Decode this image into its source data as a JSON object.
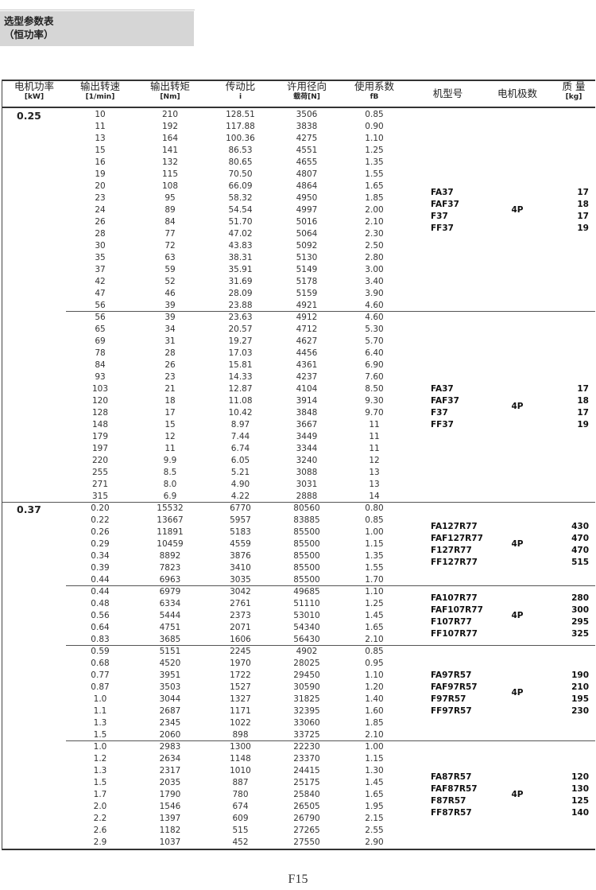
{
  "title": {
    "line1": "选型参数表",
    "line2": "（恒功率）"
  },
  "headers": [
    {
      "label": "电机功率",
      "unit": "[kW]"
    },
    {
      "label": "输出转速",
      "unit": "[1/min]"
    },
    {
      "label": "输出转矩",
      "unit": "[Nm]"
    },
    {
      "label": "传动比",
      "unit": "i"
    },
    {
      "label": "许用径向",
      "unit": "载荷[N]"
    },
    {
      "label": "使用系数",
      "unit": "fB"
    },
    {
      "label": "机型号",
      "unit": ""
    },
    {
      "label": "电机极数",
      "unit": ""
    },
    {
      "label": "质 量",
      "unit": "[kg]"
    }
  ],
  "groups": [
    {
      "power": "0.25",
      "models": [
        "FA37",
        "FAF37",
        "F37",
        "FF37"
      ],
      "poles": "4P",
      "mass": [
        "17",
        "18",
        "17",
        "19"
      ],
      "rows": [
        [
          "10",
          "210",
          "128.51",
          "3506",
          "0.85"
        ],
        [
          "11",
          "192",
          "117.88",
          "3838",
          "0.90"
        ],
        [
          "13",
          "164",
          "100.36",
          "4275",
          "1.10"
        ],
        [
          "15",
          "141",
          "86.53",
          "4551",
          "1.25"
        ],
        [
          "16",
          "132",
          "80.65",
          "4655",
          "1.35"
        ],
        [
          "19",
          "115",
          "70.50",
          "4807",
          "1.55"
        ],
        [
          "20",
          "108",
          "66.09",
          "4864",
          "1.65"
        ],
        [
          "23",
          "95",
          "58.32",
          "4950",
          "1.85"
        ],
        [
          "24",
          "89",
          "54.54",
          "4997",
          "2.00"
        ],
        [
          "26",
          "84",
          "51.70",
          "5016",
          "2.10"
        ],
        [
          "28",
          "77",
          "47.02",
          "5064",
          "2.30"
        ],
        [
          "30",
          "72",
          "43.83",
          "5092",
          "2.50"
        ],
        [
          "35",
          "63",
          "38.31",
          "5130",
          "2.80"
        ],
        [
          "37",
          "59",
          "35.91",
          "5149",
          "3.00"
        ],
        [
          "42",
          "52",
          "31.69",
          "5178",
          "3.40"
        ],
        [
          "47",
          "46",
          "28.09",
          "5159",
          "3.90"
        ],
        [
          "56",
          "39",
          "23.88",
          "4921",
          "4.60"
        ]
      ]
    },
    {
      "power": "",
      "models": [
        "FA37",
        "FAF37",
        "F37",
        "FF37"
      ],
      "poles": "4P",
      "mass": [
        "17",
        "18",
        "17",
        "19"
      ],
      "rows": [
        [
          "56",
          "39",
          "23.63",
          "4912",
          "4.60"
        ],
        [
          "65",
          "34",
          "20.57",
          "4712",
          "5.30"
        ],
        [
          "69",
          "31",
          "19.27",
          "4627",
          "5.70"
        ],
        [
          "78",
          "28",
          "17.03",
          "4456",
          "6.40"
        ],
        [
          "84",
          "26",
          "15.81",
          "4361",
          "6.90"
        ],
        [
          "93",
          "23",
          "14.33",
          "4237",
          "7.60"
        ],
        [
          "103",
          "21",
          "12.87",
          "4104",
          "8.50"
        ],
        [
          "120",
          "18",
          "11.08",
          "3914",
          "9.30"
        ],
        [
          "128",
          "17",
          "10.42",
          "3848",
          "9.70"
        ],
        [
          "148",
          "15",
          "8.97",
          "3667",
          "11"
        ],
        [
          "179",
          "12",
          "7.44",
          "3449",
          "11"
        ],
        [
          "197",
          "11",
          "6.74",
          "3344",
          "11"
        ],
        [
          "220",
          "9.9",
          "6.05",
          "3240",
          "12"
        ],
        [
          "255",
          "8.5",
          "5.21",
          "3088",
          "13"
        ],
        [
          "271",
          "8.0",
          "4.90",
          "3031",
          "13"
        ],
        [
          "315",
          "6.9",
          "4.22",
          "2888",
          "14"
        ]
      ]
    },
    {
      "power": "0.37",
      "models": [
        "FA127R77",
        "FAF127R77",
        "F127R77",
        "FF127R77"
      ],
      "poles": "4P",
      "mass": [
        "430",
        "470",
        "470",
        "515"
      ],
      "rows": [
        [
          "0.20",
          "15532",
          "6770",
          "80560",
          "0.80"
        ],
        [
          "0.22",
          "13667",
          "5957",
          "83885",
          "0.85"
        ],
        [
          "0.26",
          "11891",
          "5183",
          "85500",
          "1.00"
        ],
        [
          "0.29",
          "10459",
          "4559",
          "85500",
          "1.15"
        ],
        [
          "0.34",
          "8892",
          "3876",
          "85500",
          "1.35"
        ],
        [
          "0.39",
          "7823",
          "3410",
          "85500",
          "1.55"
        ],
        [
          "0.44",
          "6963",
          "3035",
          "85500",
          "1.70"
        ]
      ]
    },
    {
      "power": "",
      "models": [
        "FA107R77",
        "FAF107R77",
        "F107R77",
        "FF107R77"
      ],
      "poles": "4P",
      "mass": [
        "280",
        "300",
        "295",
        "325"
      ],
      "rows": [
        [
          "0.44",
          "6979",
          "3042",
          "49685",
          "1.10"
        ],
        [
          "0.48",
          "6334",
          "2761",
          "51110",
          "1.25"
        ],
        [
          "0.56",
          "5444",
          "2373",
          "53010",
          "1.45"
        ],
        [
          "0.64",
          "4751",
          "2071",
          "54340",
          "1.65"
        ],
        [
          "0.83",
          "3685",
          "1606",
          "56430",
          "2.10"
        ]
      ]
    },
    {
      "power": "",
      "models": [
        "FA97R57",
        "FAF97R57",
        "F97R57",
        "FF97R57"
      ],
      "poles": "4P",
      "mass": [
        "190",
        "210",
        "195",
        "230"
      ],
      "rows": [
        [
          "0.59",
          "5151",
          "2245",
          "4902",
          "0.85"
        ],
        [
          "0.68",
          "4520",
          "1970",
          "28025",
          "0.95"
        ],
        [
          "0.77",
          "3951",
          "1722",
          "29450",
          "1.10"
        ],
        [
          "0.87",
          "3503",
          "1527",
          "30590",
          "1.20"
        ],
        [
          "1.0",
          "3044",
          "1327",
          "31825",
          "1.40"
        ],
        [
          "1.1",
          "2687",
          "1171",
          "32395",
          "1.60"
        ],
        [
          "1.3",
          "2345",
          "1022",
          "33060",
          "1.85"
        ],
        [
          "1.5",
          "2060",
          "898",
          "33725",
          "2.10"
        ]
      ]
    },
    {
      "power": "",
      "models": [
        "FA87R57",
        "FAF87R57",
        "F87R57",
        "FF87R57"
      ],
      "poles": "4P",
      "mass": [
        "120",
        "130",
        "125",
        "140"
      ],
      "rows": [
        [
          "1.0",
          "2983",
          "1300",
          "22230",
          "1.00"
        ],
        [
          "1.2",
          "2634",
          "1148",
          "23370",
          "1.15"
        ],
        [
          "1.3",
          "2317",
          "1010",
          "24415",
          "1.30"
        ],
        [
          "1.5",
          "2035",
          "887",
          "25175",
          "1.45"
        ],
        [
          "1.7",
          "1790",
          "780",
          "25840",
          "1.65"
        ],
        [
          "2.0",
          "1546",
          "674",
          "26505",
          "1.95"
        ],
        [
          "2.2",
          "1397",
          "609",
          "26790",
          "2.15"
        ],
        [
          "2.6",
          "1182",
          "515",
          "27265",
          "2.55"
        ],
        [
          "2.9",
          "1037",
          "452",
          "27550",
          "2.90"
        ]
      ]
    }
  ],
  "page_number": "F15"
}
